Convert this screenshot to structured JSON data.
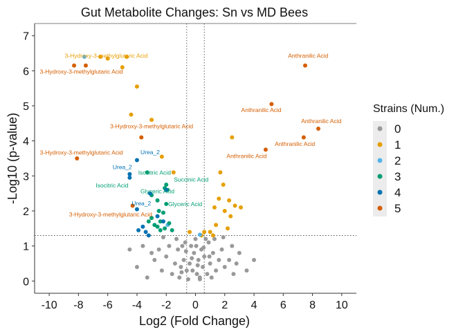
{
  "chart_data": {
    "type": "scatter",
    "title": "Gut Metabolite Changes: Sn vs MD Bees",
    "xlabel": "Log2 (Fold Change)",
    "ylabel": "-Log10 (p-value)",
    "xlim": [
      -11,
      11
    ],
    "ylim": [
      -0.35,
      7.35
    ],
    "x_ticks": [
      "-10",
      "-8",
      "-6",
      "-4",
      "-2",
      "0",
      "2",
      "4",
      "6",
      "8",
      "10"
    ],
    "y_ticks": [
      "0",
      "1",
      "2",
      "3",
      "4",
      "5",
      "6",
      "7"
    ],
    "vlines": [
      -0.6,
      0.6
    ],
    "hline": 1.3,
    "grid": false,
    "legend": {
      "title": "Strains (Num.)",
      "position": "right",
      "entries": [
        {
          "label": "0",
          "color": "#999999"
        },
        {
          "label": "1",
          "color": "#E69F00"
        },
        {
          "label": "2",
          "color": "#56B4E9"
        },
        {
          "label": "3",
          "color": "#009E73"
        },
        {
          "label": "4",
          "color": "#0072B2"
        },
        {
          "label": "5",
          "color": "#D55E00"
        }
      ]
    },
    "series": [
      {
        "name": "0",
        "color": "#999999",
        "points": [
          [
            0.1,
            0.2
          ],
          [
            -0.2,
            0.3
          ],
          [
            0.3,
            0.1
          ],
          [
            0.5,
            0.4
          ],
          [
            -0.4,
            0.5
          ],
          [
            0.2,
            0.6
          ],
          [
            -0.1,
            0.8
          ],
          [
            0.6,
            0.7
          ],
          [
            -0.6,
            0.3
          ],
          [
            0.8,
            0.2
          ],
          [
            -0.8,
            0.6
          ],
          [
            1.0,
            0.5
          ],
          [
            -1.0,
            0.4
          ],
          [
            0.4,
            0.9
          ],
          [
            -0.3,
            1.0
          ],
          [
            0.9,
            1.1
          ],
          [
            -0.9,
            1.0
          ],
          [
            1.2,
            0.8
          ],
          [
            -1.2,
            0.9
          ],
          [
            1.4,
            0.3
          ],
          [
            -1.4,
            0.5
          ],
          [
            1.6,
            0.6
          ],
          [
            -1.6,
            0.2
          ],
          [
            0.0,
            1.2
          ],
          [
            0.7,
            1.2
          ],
          [
            -0.7,
            1.1
          ],
          [
            1.1,
            0.1
          ],
          [
            -1.1,
            0.1
          ],
          [
            2.0,
            0.4
          ],
          [
            -2.0,
            0.7
          ],
          [
            1.8,
            0.9
          ],
          [
            -1.8,
            1.0
          ],
          [
            2.3,
            0.6
          ],
          [
            -2.3,
            0.3
          ],
          [
            0.3,
            0.05
          ],
          [
            -0.5,
            0.05
          ],
          [
            0.15,
            0.45
          ],
          [
            -0.25,
            0.65
          ],
          [
            0.55,
            0.95
          ],
          [
            -0.65,
            0.85
          ],
          [
            1.3,
            1.2
          ],
          [
            -1.3,
            1.2
          ],
          [
            2.5,
            1.0
          ],
          [
            -2.5,
            0.9
          ],
          [
            2.8,
            0.5
          ],
          [
            -2.8,
            0.6
          ],
          [
            3.0,
            0.8
          ],
          [
            -3.0,
            0.8
          ],
          [
            3.5,
            0.3
          ],
          [
            -3.6,
            1.0
          ],
          [
            -4.0,
            0.4
          ],
          [
            -4.5,
            0.9
          ],
          [
            -3.3,
            0.1
          ],
          [
            4.0,
            0.6
          ],
          [
            2.6,
            0.2
          ],
          [
            -2.2,
            1.25
          ],
          [
            1.9,
            1.25
          ],
          [
            0.95,
            0.7
          ],
          [
            -0.95,
            0.25
          ],
          [
            0.05,
            1.0
          ]
        ]
      },
      {
        "name": "1",
        "color": "#E69F00",
        "points": [
          [
            -6.5,
            6.4
          ],
          [
            -6.0,
            6.35
          ],
          [
            -4.7,
            6.4
          ],
          [
            -5.0,
            6.1
          ],
          [
            -4.0,
            5.55
          ],
          [
            -4.4,
            4.75
          ],
          [
            -3.0,
            4.6
          ],
          [
            -2.3,
            3.55
          ],
          [
            -1.5,
            3.1
          ],
          [
            2.5,
            4.1
          ],
          [
            1.7,
            3.1
          ],
          [
            1.9,
            2.75
          ],
          [
            1.6,
            2.35
          ],
          [
            2.3,
            2.3
          ],
          [
            2.7,
            2.15
          ],
          [
            3.1,
            2.1
          ],
          [
            2.0,
            2.0
          ],
          [
            2.4,
            1.85
          ],
          [
            1.4,
            1.6
          ],
          [
            1.0,
            1.4
          ],
          [
            0.6,
            1.4
          ],
          [
            1.2,
            1.3
          ],
          [
            2.2,
            1.5
          ],
          [
            1.3,
            2.1
          ],
          [
            -0.4,
            1.4
          ],
          [
            0.4,
            1.3
          ]
        ]
      },
      {
        "name": "2",
        "color": "#56B4E9",
        "points": [
          [
            -7.6,
            6.4
          ],
          [
            -1.9,
            1.6
          ],
          [
            0.3,
            1.32
          ]
        ]
      },
      {
        "name": "3",
        "color": "#009E73",
        "points": [
          [
            -2.0,
            2.75
          ],
          [
            -2.1,
            2.65
          ],
          [
            -1.9,
            2.6
          ],
          [
            -3.0,
            2.45
          ],
          [
            -2.6,
            2.3
          ],
          [
            -3.3,
            3.1
          ],
          [
            -2.0,
            2.2
          ],
          [
            -2.5,
            2.0
          ],
          [
            -2.2,
            1.95
          ],
          [
            -3.0,
            1.8
          ],
          [
            -2.4,
            1.7
          ],
          [
            -1.8,
            1.65
          ],
          [
            -2.8,
            1.6
          ],
          [
            -2.1,
            1.5
          ],
          [
            -2.4,
            1.45
          ],
          [
            -1.6,
            1.45
          ],
          [
            -3.2,
            1.7
          ],
          [
            -2.6,
            1.55
          ]
        ]
      },
      {
        "name": "4",
        "color": "#0072B2",
        "points": [
          [
            -4.0,
            3.45
          ],
          [
            -4.5,
            3.05
          ],
          [
            -4.5,
            2.95
          ],
          [
            -3.1,
            2.5
          ],
          [
            -2.0,
            2.6
          ],
          [
            -3.6,
            1.55
          ],
          [
            -3.9,
            1.45
          ],
          [
            -3.4,
            1.4
          ],
          [
            -2.6,
            1.85
          ],
          [
            -3.2,
            1.3
          ],
          [
            -4.0,
            2.05
          ],
          [
            -2.2,
            1.7
          ]
        ]
      },
      {
        "name": "5",
        "color": "#D55E00",
        "points": [
          [
            -8.3,
            6.15
          ],
          [
            -7.5,
            6.15
          ],
          [
            -3.7,
            4.1
          ],
          [
            -8.1,
            3.5
          ],
          [
            -4.3,
            2.15
          ],
          [
            7.5,
            6.15
          ],
          [
            5.2,
            5.05
          ],
          [
            8.4,
            4.35
          ],
          [
            7.4,
            4.1
          ],
          [
            4.8,
            3.75
          ]
        ]
      }
    ],
    "annotations": [
      {
        "text": "3-Hydroxy-3-methylglutaric Acid",
        "color": "#E69F00",
        "x": -6.1,
        "y": 6.37
      },
      {
        "text": "3-Hydroxy-3-methylglutaric Acid",
        "color": "#D55E00",
        "x": -7.8,
        "y": 5.92
      },
      {
        "text": "Anthranilic Acid",
        "color": "#D55E00",
        "x": 7.7,
        "y": 6.37
      },
      {
        "text": "Anthranilic Acid",
        "color": "#D55E00",
        "x": 4.5,
        "y": 4.82
      },
      {
        "text": "Anthranilic Acid",
        "color": "#D55E00",
        "x": 8.6,
        "y": 4.51
      },
      {
        "text": "Anthranilic Acid",
        "color": "#D55E00",
        "x": 6.8,
        "y": 3.86
      },
      {
        "text": "Anthranilic Acid",
        "color": "#D55E00",
        "x": 3.5,
        "y": 3.51
      },
      {
        "text": "3-Hydroxy-3-methylglutaric Acid",
        "color": "#D55E00",
        "x": -3.0,
        "y": 4.36
      },
      {
        "text": "3-Hydroxy-3-methylglutaric Acid",
        "color": "#D55E00",
        "x": -7.8,
        "y": 3.61
      },
      {
        "text": "Urea_2",
        "color": "#0072B2",
        "x": -3.1,
        "y": 3.62
      },
      {
        "text": "Urea_2",
        "color": "#0072B2",
        "x": -5.0,
        "y": 3.19
      },
      {
        "text": "Isocitric Acid",
        "color": "#009E73",
        "x": -2.8,
        "y": 3.04
      },
      {
        "text": "Succinic Acid",
        "color": "#009E73",
        "x": -0.3,
        "y": 2.84
      },
      {
        "text": "Isocitric Acid",
        "color": "#009E73",
        "x": -5.7,
        "y": 2.67
      },
      {
        "text": "Glyceric Acid",
        "color": "#009E73",
        "x": -2.6,
        "y": 2.5
      },
      {
        "text": "Glyceric Acid",
        "color": "#009E73",
        "x": -0.7,
        "y": 2.14
      },
      {
        "text": "Urea_2",
        "color": "#0072B2",
        "x": -3.7,
        "y": 2.16
      },
      {
        "text": "3-Hydroxy-3-methylglutaric Acid",
        "color": "#D55E00",
        "x": -5.8,
        "y": 1.84
      }
    ]
  }
}
